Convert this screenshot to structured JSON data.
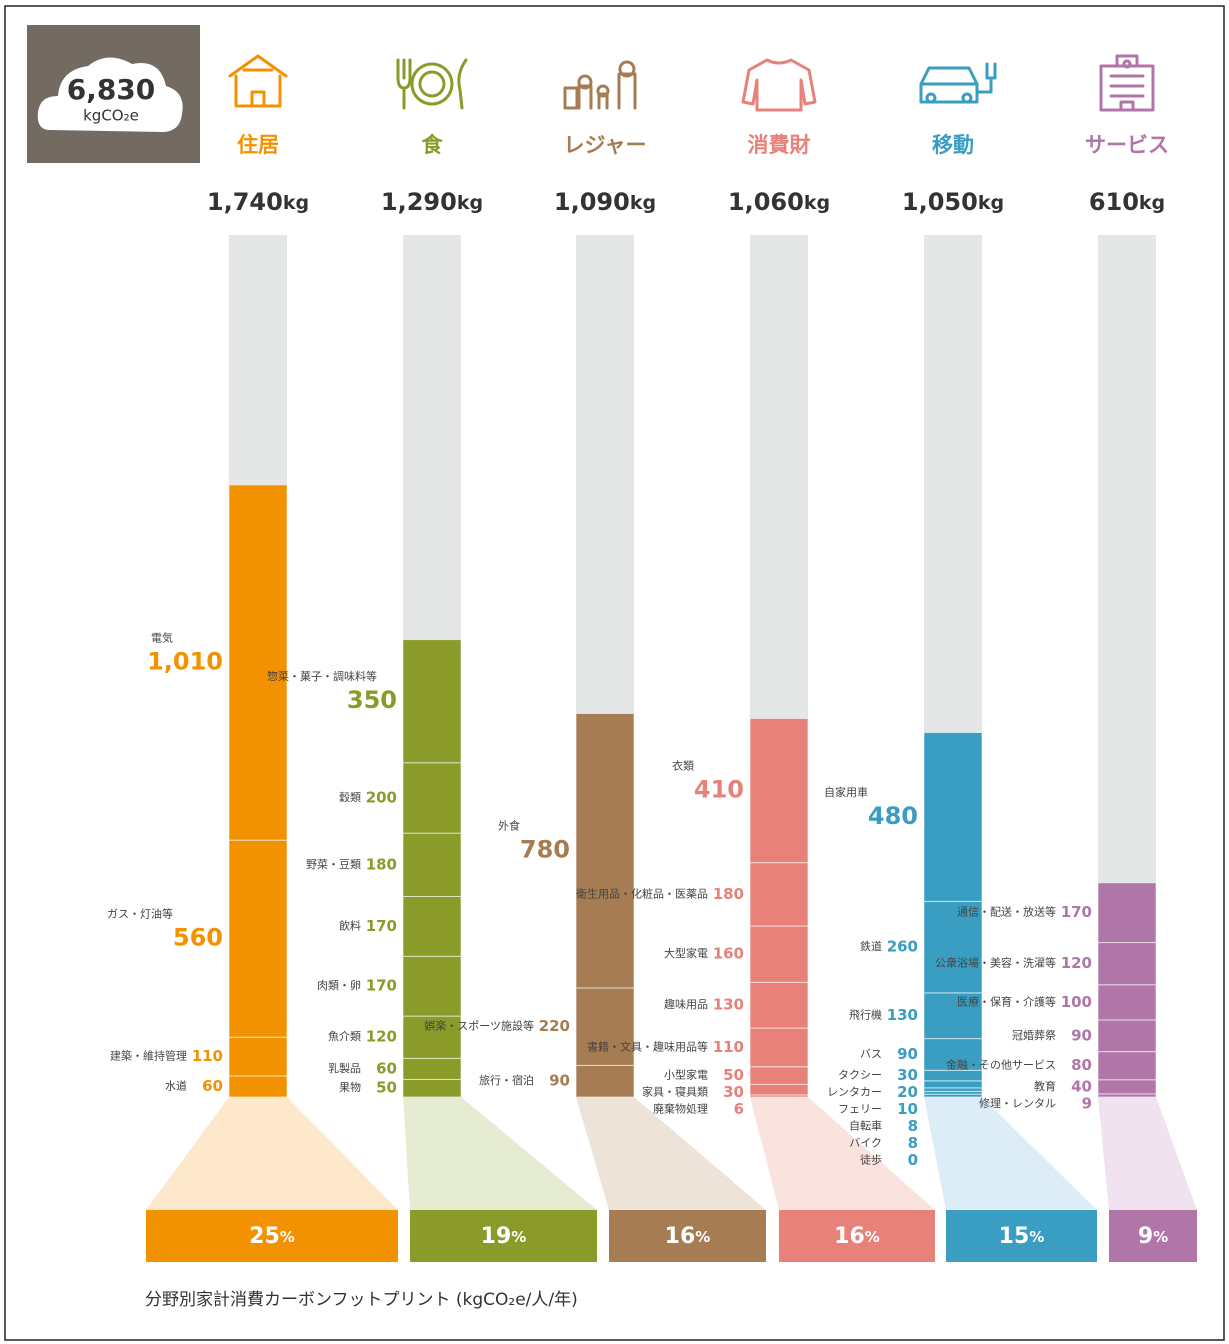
{
  "chart_data": {
    "type": "stacked-bar",
    "total": {
      "value": 6830,
      "label": "6,830"
    },
    "total_unit": "kgCO₂e",
    "unit": "kg",
    "share_unit": "%",
    "ylim": [
      0,
      2450
    ],
    "caption": "分野別家計消費カーボンフットプリント (kgCO₂e/人/年)",
    "groups": [
      {
        "name": "住居",
        "color": "#f39200",
        "light": "#fde8cc",
        "total": {
          "value": 1740,
          "label": "1,740"
        },
        "share": 25,
        "segments": [
          {
            "name": "水道",
            "value": 60
          },
          {
            "name": "建築・維持管理",
            "value": 110
          },
          {
            "name": "ガス・灯油等",
            "value": 560
          },
          {
            "name": "電気",
            "value": 1010,
            "label": "1,010"
          }
        ]
      },
      {
        "name": "食",
        "color": "#8a9b2a",
        "light": "#e5ecd2",
        "total": {
          "value": 1290,
          "label": "1,290"
        },
        "share": 19,
        "segments": [
          {
            "name": "果物",
            "value": 50
          },
          {
            "name": "乳製品",
            "value": 60
          },
          {
            "name": "魚介類",
            "value": 120
          },
          {
            "name": "肉類・卵",
            "value": 170
          },
          {
            "name": "飲料",
            "value": 170
          },
          {
            "name": "野菜・豆類",
            "value": 180
          },
          {
            "name": "穀類",
            "value": 200
          },
          {
            "name": "惣菜・菓子・調味料等",
            "value": 350
          }
        ]
      },
      {
        "name": "レジャー",
        "color": "#a67c52",
        "light": "#ede3d8",
        "total": {
          "value": 1090,
          "label": "1,090"
        },
        "share": 16,
        "segments": [
          {
            "name": "旅行・宿泊",
            "value": 90
          },
          {
            "name": "娯楽・スポーツ施設等",
            "value": 220
          },
          {
            "name": "外食",
            "value": 780
          }
        ]
      },
      {
        "name": "消費財",
        "color": "#e8817a",
        "light": "#fae2df",
        "total": {
          "value": 1060,
          "label": "1,060"
        },
        "share": 16,
        "segments": [
          {
            "name": "廃棄物処理",
            "value": 6
          },
          {
            "name": "家具・寝具類",
            "value": 30
          },
          {
            "name": "小型家電",
            "value": 50
          },
          {
            "name": "書籍・文具・趣味用品等",
            "value": 110
          },
          {
            "name": "趣味用品",
            "value": 130
          },
          {
            "name": "大型家電",
            "value": 160
          },
          {
            "name": "衛生用品・化粧品・医薬品",
            "value": 180
          },
          {
            "name": "衣類",
            "value": 410
          }
        ]
      },
      {
        "name": "移動",
        "color": "#3a9ec2",
        "light": "#dcedf7",
        "total": {
          "value": 1050,
          "label": "1,050"
        },
        "share": 15,
        "segments": [
          {
            "name": "徒歩",
            "value": 0
          },
          {
            "name": "バイク",
            "value": 8
          },
          {
            "name": "自転車",
            "value": 8
          },
          {
            "name": "フェリー",
            "value": 10
          },
          {
            "name": "レンタカー",
            "value": 20
          },
          {
            "name": "タクシー",
            "value": 30
          },
          {
            "name": "バス",
            "value": 90
          },
          {
            "name": "飛行機",
            "value": 130
          },
          {
            "name": "鉄道",
            "value": 260
          },
          {
            "name": "自家用車",
            "value": 480
          }
        ]
      },
      {
        "name": "サービス",
        "color": "#b076a8",
        "light": "#f0e2ee",
        "total": {
          "value": 610,
          "label": "610"
        },
        "share": 9,
        "segments": [
          {
            "name": "修理・レンタル",
            "value": 9
          },
          {
            "name": "教育",
            "value": 40
          },
          {
            "name": "金融・その他サービス",
            "value": 80
          },
          {
            "name": "冠婚葬祭",
            "value": 90
          },
          {
            "name": "医療・保育・介護等",
            "value": 100
          },
          {
            "name": "公衆浴場・美容・洗濯等",
            "value": 120
          },
          {
            "name": "通信・配送・放送等",
            "value": 170
          }
        ]
      }
    ]
  }
}
